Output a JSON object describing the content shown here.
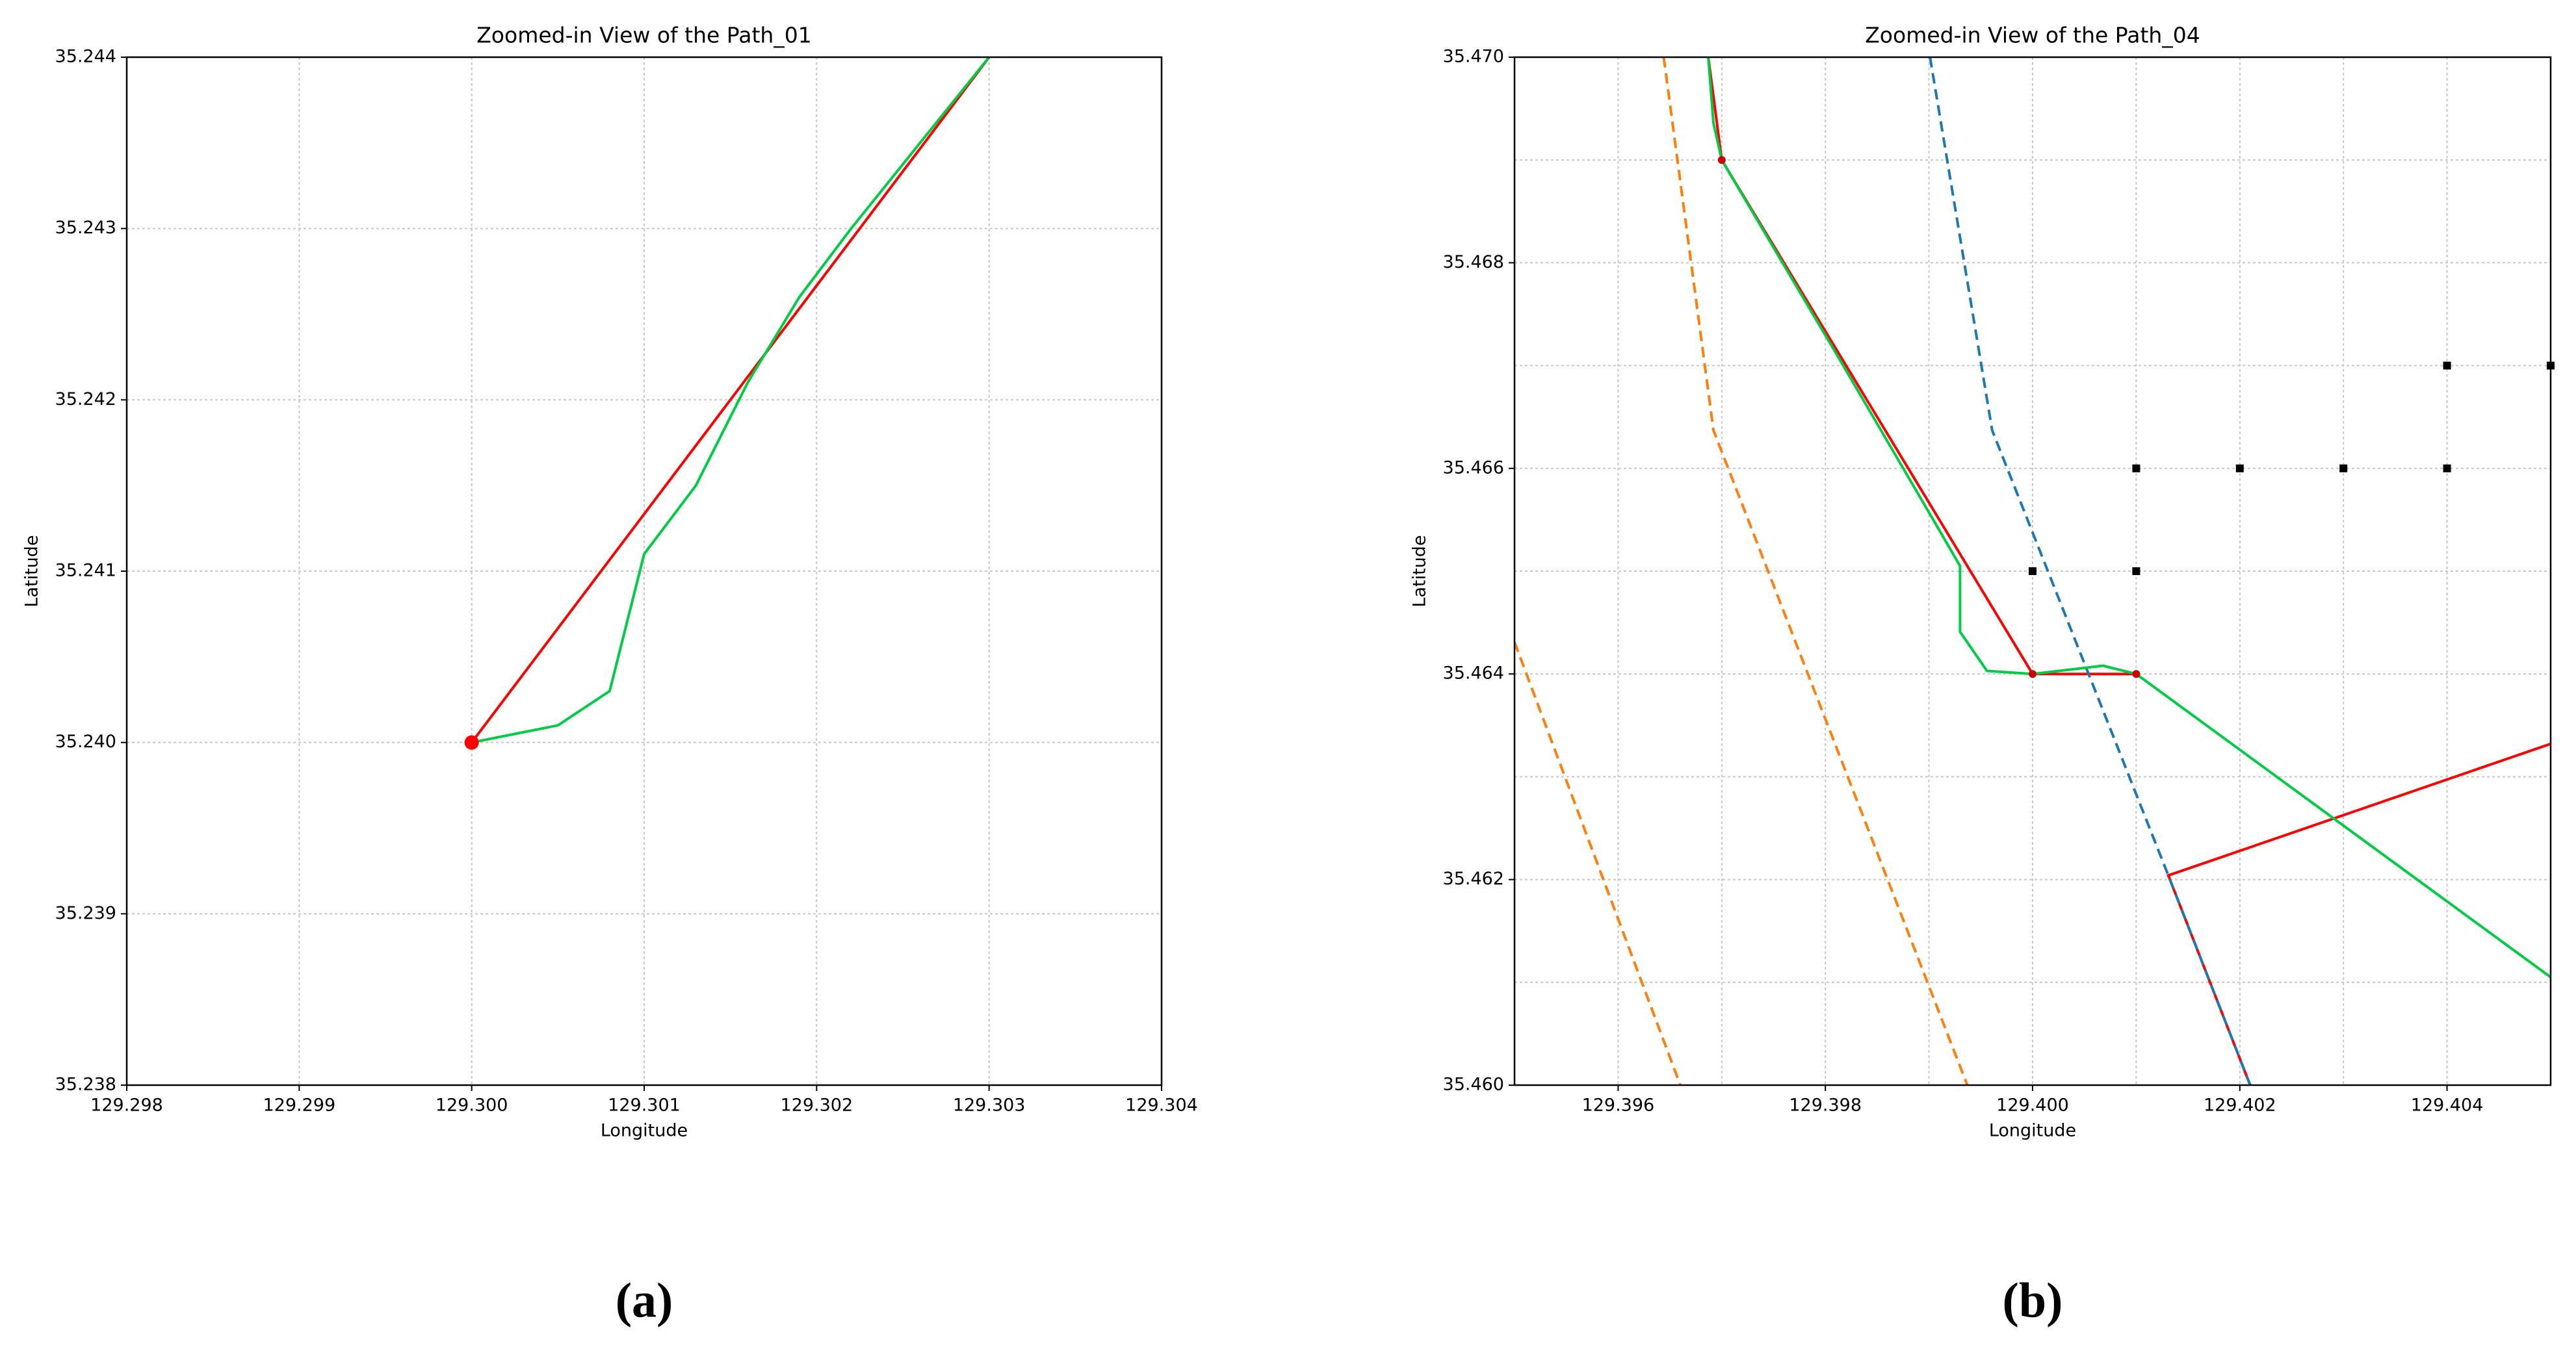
{
  "chart_data": [
    {
      "type": "line",
      "title": "Zoomed-in View of the Path_01",
      "xlabel": "Longitude",
      "ylabel": "Latitude",
      "panel_label": "(a)",
      "xlim": [
        129.298,
        129.304
      ],
      "ylim": [
        35.238,
        35.244
      ],
      "xticks": [
        129.298,
        129.299,
        {
          "value": 129.3,
          "label": "129.300"
        },
        129.301,
        129.302,
        129.303,
        129.304
      ],
      "yticks": [
        35.238,
        35.239,
        {
          "value": 35.24,
          "label": "35.240"
        },
        35.241,
        35.242,
        35.243,
        35.244
      ],
      "grid": true,
      "series": [
        {
          "color": "#ff0000",
          "style": "solid",
          "x": [
            129.3,
            129.303
          ],
          "values": [
            35.24,
            35.244
          ]
        },
        {
          "color": "#00cc44",
          "style": "solid",
          "x": [
            129.3,
            129.3005,
            129.3008,
            129.3009,
            129.301,
            129.3013,
            129.3016,
            129.3019,
            129.3022,
            129.303
          ],
          "values": [
            35.24,
            35.2401,
            35.2403,
            35.2407,
            35.2411,
            35.2415,
            35.2421,
            35.2426,
            35.243,
            35.244
          ]
        },
        {
          "color": "#ff0000",
          "style": "markers",
          "marker": "circle",
          "x": [
            129.3
          ],
          "values": [
            35.24
          ]
        }
      ]
    },
    {
      "type": "line",
      "title": "Zoomed-in View of the Path_04",
      "xlabel": "Longitude",
      "ylabel": "Latitude",
      "panel_label": "(b)",
      "xlim": [
        129.395,
        129.405
      ],
      "ylim": [
        35.46,
        35.47
      ],
      "xticks": [
        129.396,
        129.398,
        {
          "value": 129.4,
          "label": "129.400"
        },
        129.402,
        129.404
      ],
      "yticks": [
        {
          "value": 35.46,
          "label": "35.460"
        },
        35.462,
        35.464,
        35.466,
        35.468,
        {
          "value": 35.47,
          "label": "35.470"
        }
      ],
      "minor_xticks": [
        129.397,
        129.399,
        129.401,
        129.403
      ],
      "minor_yticks": [
        35.461,
        35.463,
        35.465,
        35.467,
        35.469
      ],
      "grid": true,
      "series": [
        {
          "color": "#ff7f0e",
          "style": "dashed",
          "x": [
            129.395,
            129.3966
          ],
          "values": [
            35.46431,
            35.46
          ]
        },
        {
          "color": "#ff0000",
          "style": "solid",
          "x": [
            129.39687,
            129.397,
            129.4,
            129.401,
            null,
            129.405,
            129.40131,
            129.4021
          ],
          "values": [
            35.47,
            35.469,
            35.464,
            35.464,
            null,
            35.46332,
            35.46204,
            35.46
          ]
        },
        {
          "color": "#ff7f0e",
          "style": "dashed",
          "x": [
            129.39644,
            129.39692,
            129.39937
          ],
          "values": [
            35.47,
            35.46637,
            35.46
          ]
        },
        {
          "color": "#1f77b4",
          "style": "dashed",
          "x": [
            129.39901,
            129.39961,
            129.40131,
            129.4021
          ],
          "values": [
            35.47,
            35.46637,
            35.46204,
            35.46
          ]
        },
        {
          "color": "#00cc44",
          "style": "solid",
          "x": [
            129.39687,
            129.39692,
            129.397,
            129.39812,
            129.39907,
            129.3993,
            129.3993,
            129.39956,
            129.4,
            129.40068,
            129.401,
            129.405
          ],
          "values": [
            35.47,
            35.46936,
            35.469,
            35.46709,
            35.46545,
            35.46505,
            35.46441,
            35.46403,
            35.464,
            35.46408,
            35.464,
            35.46105
          ]
        },
        {
          "color": "#000000",
          "style": "markers",
          "marker": "square",
          "x": [
            129.4,
            129.401,
            129.401,
            129.402,
            129.403,
            129.404,
            129.404,
            129.405
          ],
          "values": [
            35.465,
            35.465,
            35.466,
            35.466,
            35.466,
            35.466,
            35.467,
            35.467
          ]
        },
        {
          "color": "#cc0000",
          "style": "markers",
          "marker": "circle",
          "x": [
            129.397,
            129.4,
            129.401
          ],
          "values": [
            35.469,
            35.464,
            35.464
          ]
        }
      ]
    }
  ]
}
